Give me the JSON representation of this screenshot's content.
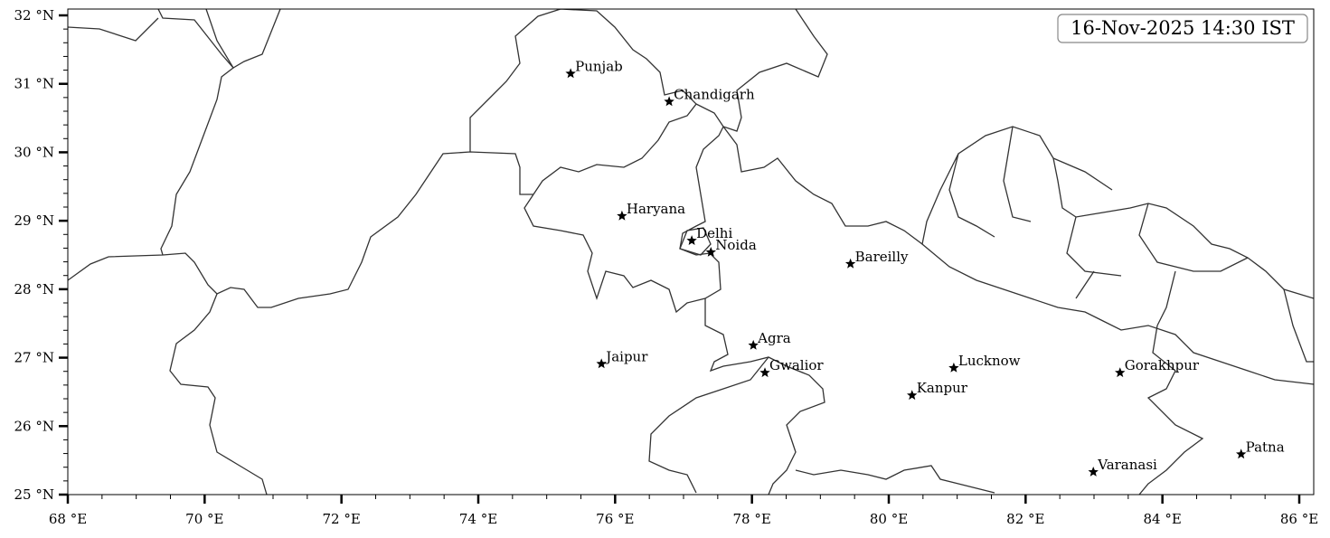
{
  "map": {
    "timestamp_label": "16-Nov-2025 14:30 IST",
    "extent": {
      "lon": [
        68,
        86.2
      ],
      "lat": [
        25,
        32.1
      ]
    },
    "x_ticks": [
      68,
      70,
      72,
      74,
      76,
      78,
      80,
      82,
      84,
      86
    ],
    "y_ticks": [
      25,
      26,
      27,
      28,
      29,
      30,
      31,
      32
    ],
    "x_tick_suffix": " °E",
    "y_tick_suffix": " °N",
    "x_tick_labels": [
      "68 °E",
      "70 °E",
      "72 °E",
      "74 °E",
      "76 °E",
      "78 °E",
      "80 °E",
      "82 °E",
      "84 °E",
      "86 °E"
    ],
    "y_tick_labels": [
      "25 °N",
      "26 °N",
      "27 °N",
      "28 °N",
      "29 °N",
      "30 °N",
      "31 °N",
      "32 °N"
    ],
    "border_color": "#333333",
    "marker": "star-icon",
    "marker_color": "#000000",
    "cities": [
      {
        "name": "Punjab",
        "lon": 75.35,
        "lat": 31.15
      },
      {
        "name": "Chandigarh",
        "lon": 76.79,
        "lat": 30.74
      },
      {
        "name": "Haryana",
        "lon": 76.1,
        "lat": 29.07
      },
      {
        "name": "Delhi",
        "lon": 77.12,
        "lat": 28.71
      },
      {
        "name": "Noida",
        "lon": 77.4,
        "lat": 28.54
      },
      {
        "name": "Bareilly",
        "lon": 79.44,
        "lat": 28.37
      },
      {
        "name": "Agra",
        "lon": 78.02,
        "lat": 27.18
      },
      {
        "name": "Jaipur",
        "lon": 75.8,
        "lat": 26.91
      },
      {
        "name": "Gwalior",
        "lon": 78.19,
        "lat": 26.78
      },
      {
        "name": "Lucknow",
        "lon": 80.95,
        "lat": 26.85
      },
      {
        "name": "Kanpur",
        "lon": 80.34,
        "lat": 26.45
      },
      {
        "name": "Gorakhpur",
        "lon": 83.38,
        "lat": 26.78
      },
      {
        "name": "Patna",
        "lon": 85.15,
        "lat": 25.59
      },
      {
        "name": "Varanasi",
        "lon": 82.99,
        "lat": 25.33
      }
    ]
  }
}
